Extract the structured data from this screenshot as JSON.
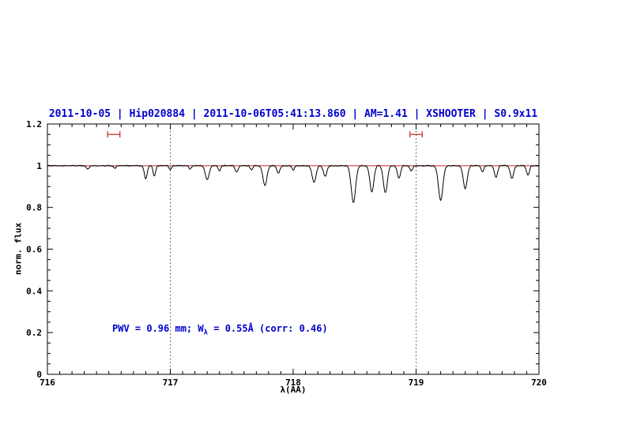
{
  "chart_data": {
    "type": "line",
    "title": "2011-10-05 | Hip020884 | 2011-10-06T05:41:13.860 | AM=1.41 | XSHOOTER | S0.9x11",
    "xlabel": "λ(AA)",
    "ylabel": "norm. flux",
    "xlim": [
      716,
      720
    ],
    "ylim": [
      0,
      1.2
    ],
    "x_ticks": [
      716,
      717,
      718,
      719,
      720
    ],
    "x_tick_labels": [
      "716",
      "717",
      "718",
      "719",
      "720"
    ],
    "y_ticks": [
      0,
      0.2,
      0.4,
      0.6,
      0.8,
      1,
      1.2
    ],
    "y_tick_labels": [
      "0",
      "0.2",
      "0.4",
      "0.6",
      "0.8",
      "1",
      "1.2"
    ],
    "x_minor_step": 0.1,
    "y_minor_step": 0.05,
    "grid": false,
    "legend": "none",
    "title_color": "#0000cc",
    "annotation_color": "#0000cc",
    "axis_color": "#000000",
    "reference_line": {
      "y": 1.0,
      "color": "#cc2222"
    },
    "dotted_vlines": [
      717,
      719
    ],
    "vline_color": "#444444",
    "marker_color": "#cc2222",
    "range_markers": [
      {
        "x_start": 716.49,
        "x_end": 716.59,
        "y": 1.15
      },
      {
        "x_start": 718.95,
        "x_end": 719.05,
        "y": 1.15
      }
    ],
    "annotation": {
      "pre": "PWV = 0.96 mm; W",
      "sub": "λ",
      "post": " = 0.55Å (corr: 0.46)",
      "x": 716.55,
      "y": 0.2
    },
    "series": [
      {
        "name": "normalized telluric spectrum",
        "color": "#000000",
        "continuum": 1.0,
        "noise_amplitude": 0.003,
        "absorption_lines": [
          [
            716.33,
            0.015,
            0.012
          ],
          [
            716.55,
            0.012,
            0.01
          ],
          [
            716.8,
            0.06,
            0.012
          ],
          [
            716.87,
            0.05,
            0.01
          ],
          [
            717.0,
            0.018,
            0.01
          ],
          [
            717.16,
            0.015,
            0.01
          ],
          [
            717.3,
            0.065,
            0.016
          ],
          [
            717.4,
            0.025,
            0.01
          ],
          [
            717.54,
            0.03,
            0.012
          ],
          [
            717.66,
            0.02,
            0.01
          ],
          [
            717.77,
            0.095,
            0.016
          ],
          [
            717.88,
            0.035,
            0.012
          ],
          [
            718.0,
            0.02,
            0.01
          ],
          [
            718.17,
            0.08,
            0.016
          ],
          [
            718.26,
            0.05,
            0.014
          ],
          [
            718.49,
            0.175,
            0.018
          ],
          [
            718.64,
            0.125,
            0.016
          ],
          [
            718.75,
            0.13,
            0.016
          ],
          [
            718.86,
            0.06,
            0.013
          ],
          [
            718.96,
            0.025,
            0.011
          ],
          [
            719.2,
            0.165,
            0.018
          ],
          [
            719.4,
            0.11,
            0.016
          ],
          [
            719.54,
            0.03,
            0.011
          ],
          [
            719.65,
            0.055,
            0.013
          ],
          [
            719.78,
            0.06,
            0.014
          ],
          [
            719.91,
            0.045,
            0.012
          ]
        ]
      }
    ]
  }
}
